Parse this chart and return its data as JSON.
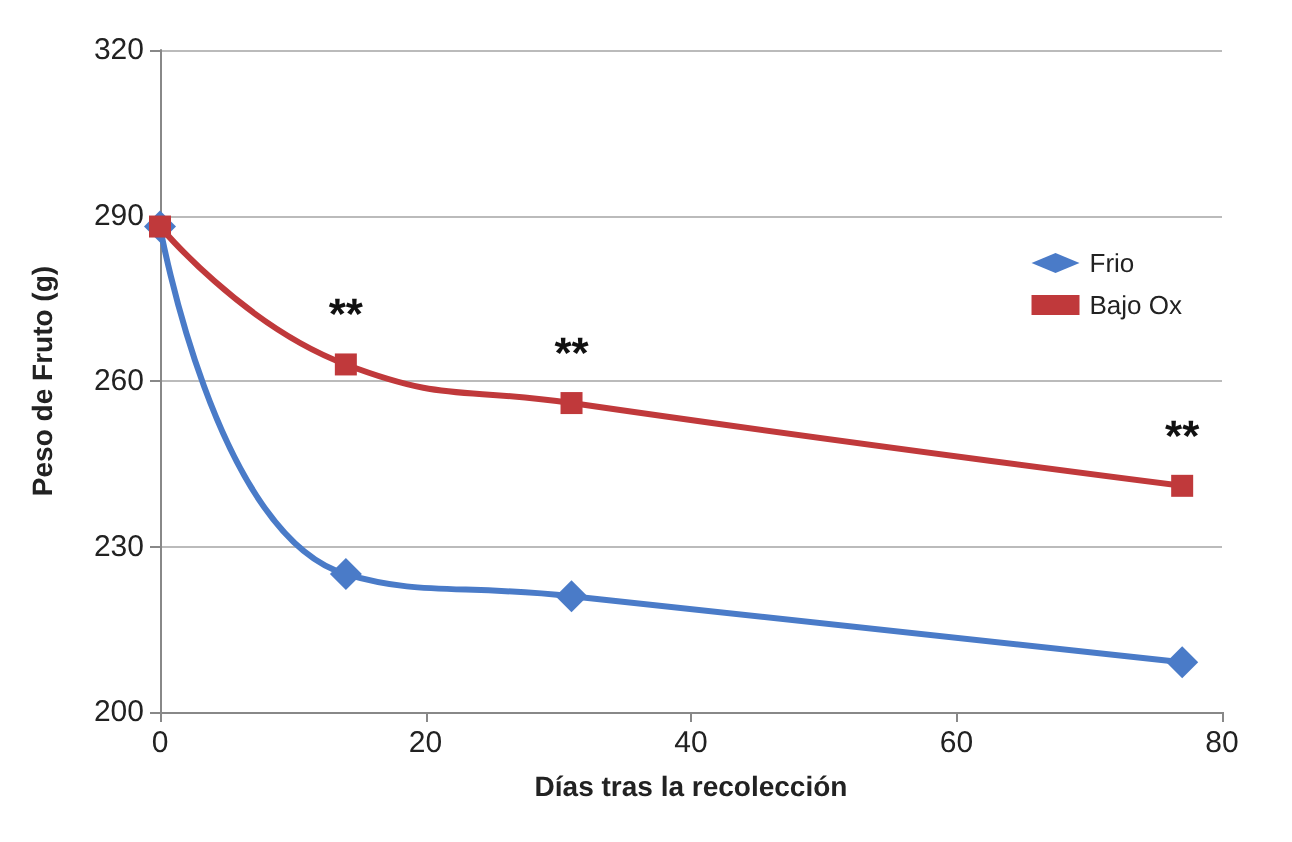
{
  "chart_data": {
    "type": "line",
    "xlabel": "Días tras la recolección",
    "ylabel": "Peso de Fruto (g)",
    "x": [
      0,
      14,
      31,
      77
    ],
    "series": [
      {
        "name": "Frio",
        "color": "#4a7bc8",
        "marker": "diamond",
        "values": [
          288,
          225,
          221,
          209
        ]
      },
      {
        "name": "Bajo Ox",
        "color": "#c0393b",
        "marker": "square",
        "values": [
          288,
          263,
          256,
          241
        ]
      }
    ],
    "xlim": [
      0,
      80
    ],
    "xticks": [
      0,
      20,
      40,
      60,
      80
    ],
    "ylim": [
      200,
      320
    ],
    "yticks": [
      200,
      230,
      260,
      290,
      320
    ],
    "grid": "y",
    "legend": "right",
    "annotations": [
      {
        "text": "**",
        "x": 14,
        "y": 263
      },
      {
        "text": "**",
        "x": 31,
        "y": 256
      },
      {
        "text": "**",
        "x": 77,
        "y": 241
      }
    ]
  }
}
